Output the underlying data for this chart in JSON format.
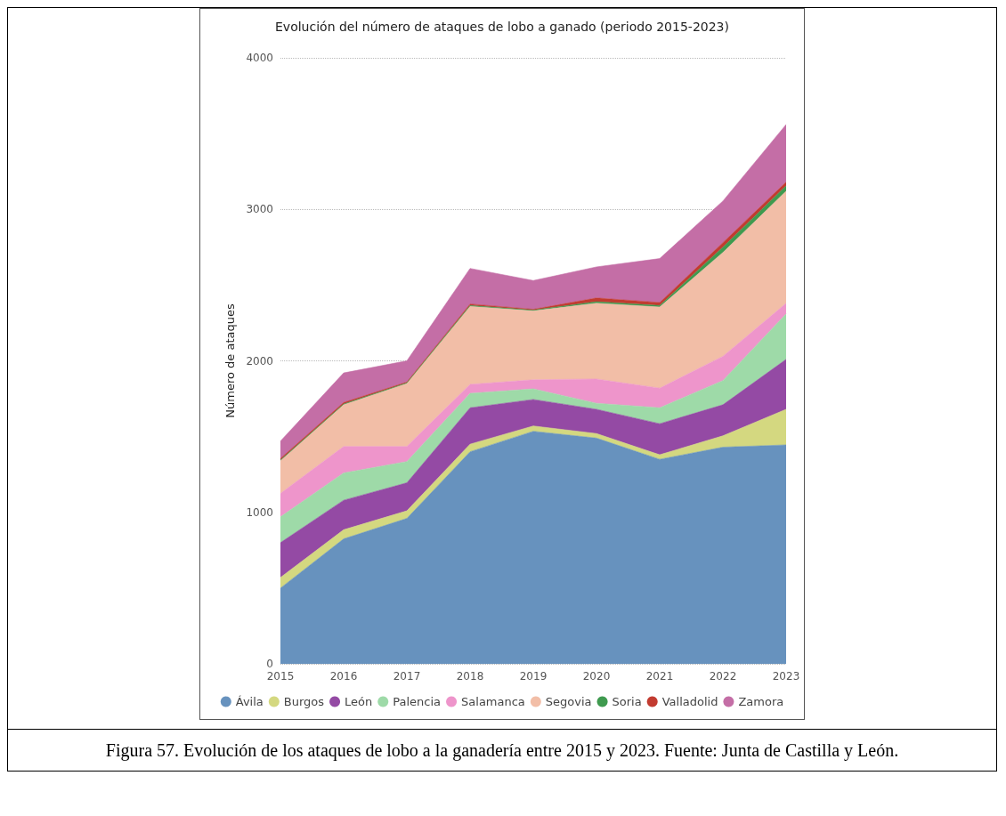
{
  "chart_data": {
    "type": "area",
    "title": "Evolución del número de ataques de lobo a ganado (periodo 2015-2023)",
    "ylabel": "Número de ataques",
    "categories": [
      "2015",
      "2016",
      "2017",
      "2018",
      "2019",
      "2020",
      "2021",
      "2022",
      "2023"
    ],
    "stacked": true,
    "ylim": [
      0,
      4000
    ],
    "yticks": [
      0,
      1000,
      2000,
      3000,
      4000
    ],
    "grid": "y",
    "legend": "bottom",
    "annotations": [
      "Figura 57. Evolución de los ataques de lobo a la ganadería entre 2015 y 2023. Fuente: Junta de Castilla y León."
    ],
    "series": [
      {
        "name": "Ávila",
        "color": "#6792be",
        "values": [
          500,
          825,
          960,
          1400,
          1535,
          1490,
          1350,
          1430,
          1445
        ]
      },
      {
        "name": "Burgos",
        "color": "#d4d880",
        "values": [
          70,
          60,
          50,
          50,
          35,
          30,
          30,
          75,
          235
        ]
      },
      {
        "name": "León",
        "color": "#944aa4",
        "values": [
          230,
          195,
          185,
          240,
          175,
          160,
          205,
          205,
          330
        ]
      },
      {
        "name": "Palencia",
        "color": "#9edaa8",
        "values": [
          170,
          180,
          140,
          95,
          70,
          40,
          105,
          160,
          300
        ]
      },
      {
        "name": "Salamanca",
        "color": "#ee95cb",
        "values": [
          155,
          175,
          100,
          60,
          60,
          160,
          130,
          160,
          70
        ]
      },
      {
        "name": "Segovia",
        "color": "#f2bea7",
        "values": [
          215,
          275,
          415,
          515,
          455,
          500,
          535,
          685,
          740
        ]
      },
      {
        "name": "Soria",
        "color": "#3f9a4f",
        "values": [
          5,
          5,
          5,
          5,
          5,
          10,
          10,
          35,
          35
        ]
      },
      {
        "name": "Valladolid",
        "color": "#c23b30",
        "values": [
          10,
          10,
          5,
          10,
          5,
          25,
          20,
          30,
          25
        ]
      },
      {
        "name": "Zamora",
        "color": "#c46ea6",
        "values": [
          115,
          195,
          140,
          235,
          190,
          205,
          290,
          275,
          380
        ]
      }
    ]
  }
}
